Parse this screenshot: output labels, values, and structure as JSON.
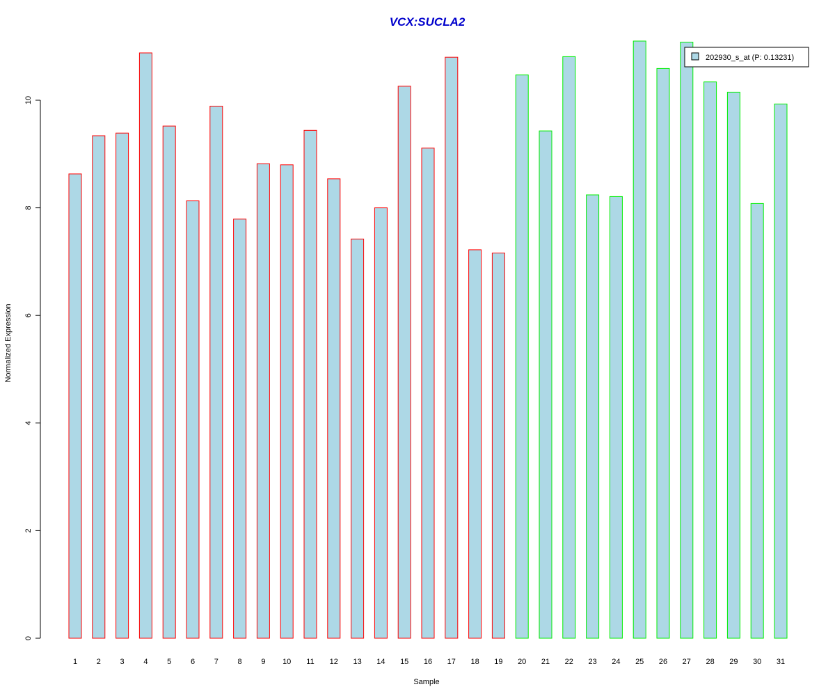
{
  "chart_data": {
    "type": "bar",
    "title": "VCX:SUCLA2",
    "xlabel": "Sample",
    "ylabel": "Normalized Expression",
    "ylim": [
      0,
      11.1
    ],
    "yticks": [
      0,
      2,
      4,
      6,
      8,
      10
    ],
    "categories": [
      "1",
      "2",
      "3",
      "4",
      "5",
      "6",
      "7",
      "8",
      "9",
      "10",
      "11",
      "12",
      "13",
      "14",
      "15",
      "16",
      "17",
      "18",
      "19",
      "20",
      "21",
      "22",
      "23",
      "24",
      "25",
      "26",
      "27",
      "28",
      "29",
      "30",
      "31"
    ],
    "series": [
      {
        "name": "202930_s_at (P: 0.13231)",
        "values": [
          8.63,
          9.34,
          9.39,
          10.88,
          9.52,
          8.13,
          9.89,
          7.79,
          8.82,
          8.8,
          9.44,
          8.54,
          7.42,
          8.0,
          10.26,
          9.11,
          10.8,
          7.22,
          7.16,
          10.47,
          9.43,
          10.81,
          8.24,
          8.21,
          11.1,
          10.59,
          11.08,
          10.34,
          10.15,
          8.08,
          9.93
        ]
      }
    ],
    "group_border": [
      "red",
      "red",
      "red",
      "red",
      "red",
      "red",
      "red",
      "red",
      "red",
      "red",
      "red",
      "red",
      "red",
      "red",
      "red",
      "red",
      "red",
      "red",
      "red",
      "green",
      "green",
      "green",
      "green",
      "green",
      "green",
      "green",
      "green",
      "green",
      "green",
      "green",
      "green"
    ],
    "legend_position": "top-right",
    "grid": false
  },
  "colors": {
    "title": "#0000cc",
    "bar_fill": "#add8e6",
    "red_border": "#ff0000",
    "green_border": "#00ee00",
    "axis": "#000000"
  }
}
